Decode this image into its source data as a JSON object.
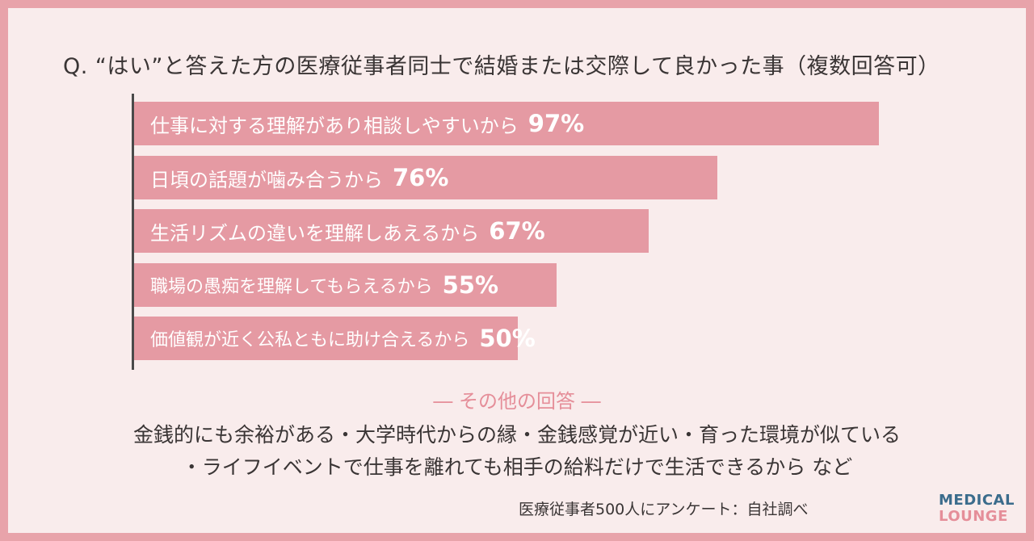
{
  "question": "Q. “はい”と答えた方の医療従事者同士で結婚または交際して良かった事（複数回答可）",
  "chart_data": {
    "type": "bar",
    "orientation": "horizontal",
    "categories": [
      "仕事に対する理解があり相談しやすいから",
      "日頃の話題が噛み合うから",
      "生活リズムの違いを理解しあえるから",
      "職場の愚痴を理解してもらえるから",
      "価値観が近く公私ともに助け合えるから"
    ],
    "values": [
      97,
      76,
      67,
      55,
      50
    ],
    "value_labels": [
      "97%",
      "76%",
      "67%",
      "55%",
      "50%"
    ],
    "unit": "%",
    "xlim": [
      0,
      100
    ],
    "bar_color": "#e59aa3",
    "grid": false
  },
  "other": {
    "title": "― その他の回答 ―",
    "line1": "金銭的にも余裕がある・大学時代からの縁・金銭感覚が近い・育った環境が似ている",
    "line2": "・ライフイベントで仕事を離れても相手の給料だけで生活できるから など"
  },
  "source": "医療従事者500人にアンケート：自社調べ",
  "logo": {
    "line1": "MEDICAL",
    "line2": "LOUNGE"
  },
  "colors": {
    "frame": "#e8a3aa",
    "background": "#f9ecec",
    "accent": "#e58e99",
    "brand": "#3b6c8c"
  }
}
